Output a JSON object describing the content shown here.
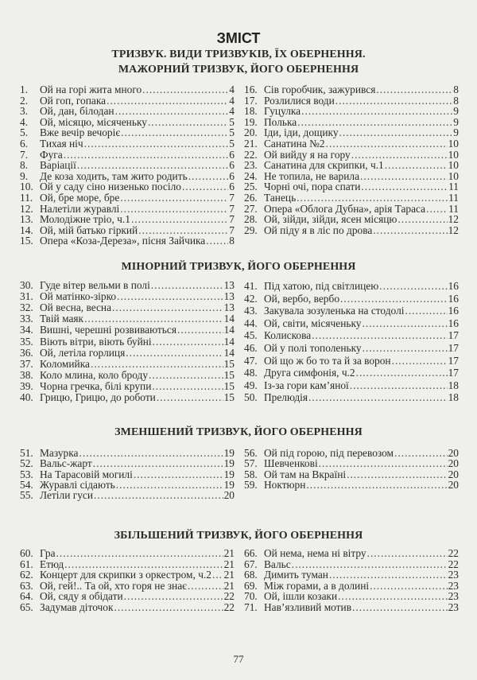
{
  "title": "ЗМІСТ",
  "subtitle_1": "ТРИЗВУК. ВИДИ ТРИЗВУКІВ, ЇХ ОБЕРНЕННЯ.",
  "sections": [
    {
      "heading": "МАЖОРНИЙ ТРИЗВУК, ЙОГО ОБЕРНЕННЯ",
      "left": [
        [
          "1.",
          "Ой на горі жита много",
          "4"
        ],
        [
          "2.",
          "Ой гоп, гопака",
          "4"
        ],
        [
          "3.",
          "Ой, дан, білодан",
          "4"
        ],
        [
          "4.",
          "Ой, місяцю, місяченьку",
          "5"
        ],
        [
          "5.",
          "Вже вечір вечоріє",
          "5"
        ],
        [
          "6.",
          "Тихая ніч",
          "5"
        ],
        [
          "7.",
          "Фуга",
          "6"
        ],
        [
          "8.",
          "Варіації",
          "6"
        ],
        [
          "9.",
          "Де коза ходить, там жито родить",
          "6"
        ],
        [
          "10.",
          "Ой у саду сіно низенько посіло",
          "6"
        ],
        [
          "11.",
          "Ой, бре море, бре",
          "7"
        ],
        [
          "12.",
          "Налетіли журавлі",
          "7"
        ],
        [
          "13.",
          "Молодіжне тріо, ч.1",
          "7"
        ],
        [
          "14.",
          "Ой, мій батько гіркий",
          "7"
        ],
        [
          "15.",
          "Опера «Коза-Дереза», пісня Зайчика",
          "8"
        ]
      ],
      "right": [
        [
          "16.",
          "Сів горобчик, зажурився",
          "8"
        ],
        [
          "17.",
          "Розлилися води",
          "8"
        ],
        [
          "18.",
          "Гуцулка",
          "9"
        ],
        [
          "19.",
          "Полька",
          "9"
        ],
        [
          "20.",
          "Іди, іди, дощику",
          "9"
        ],
        [
          "21.",
          "Санатина №2",
          "10"
        ],
        [
          "22.",
          "Ой вийду я на гору",
          "10"
        ],
        [
          "23.",
          "Санатина для скрипки, ч.1",
          "10"
        ],
        [
          "24.",
          "Не топила, не варила",
          "10"
        ],
        [
          "25.",
          "Чорні очі, пора спати",
          "11"
        ],
        [
          "26.",
          "Танець",
          "11"
        ],
        [
          "27.",
          "Опера «Облога Дубна», арія Тараса",
          "11"
        ],
        [
          "28.",
          "Ой, зійди, зійди, ясен місяцю",
          "12"
        ],
        [
          "29.",
          "Ой піду я в ліс по дрова",
          "12"
        ]
      ]
    },
    {
      "heading": "МІНОРНИЙ ТРИЗВУК, ЙОГО ОБЕРНЕННЯ",
      "left": [
        [
          "30.",
          "Гуде вітер вельми в полі",
          "13"
        ],
        [
          "31.",
          "Ой матінко-зірко",
          "13"
        ],
        [
          "32.",
          "Ой весна, весна",
          "13"
        ],
        [
          "33.",
          "Твій маяк",
          "14"
        ],
        [
          "34.",
          "Вишні, черешні розвиваються",
          "14"
        ],
        [
          "35.",
          "Віють вітри, віють буйні",
          "14"
        ],
        [
          "36.",
          "Ой, летіла горлиця",
          "14"
        ],
        [
          "37.",
          "Коломийка",
          "15"
        ],
        [
          "38.",
          "Коло млина, коло броду",
          "15"
        ],
        [
          "39.",
          "Чорна гречка, білі крупи",
          "15"
        ],
        [
          "40.",
          "Грицю, Грицю, до роботи",
          "15"
        ]
      ],
      "right": [
        [
          "41.",
          "Під хатою, під світлицею",
          "16"
        ],
        [
          "42.",
          "Ой, вербо, вербо",
          "16"
        ],
        [
          "43.",
          "Закувала зозуленька на стодолі",
          "16"
        ],
        [
          "44.",
          "Ой, світи, місяченьку",
          "16"
        ],
        [
          "45.",
          "Колискова",
          "17"
        ],
        [
          "46.",
          "Ой у полі тополеньку",
          "17"
        ],
        [
          "47.",
          "Ой що ж бо то  та й за ворон",
          "17"
        ],
        [
          "48.",
          "Друга симфонія, ч.2",
          "17"
        ],
        [
          "49.",
          "Із-за гори кам’яної",
          "18"
        ],
        [
          "50.",
          "Прелюдія",
          "18"
        ]
      ]
    },
    {
      "heading": "ЗМЕНШЕНИЙ ТРИЗВУК, ЙОГО ОБЕРНЕННЯ",
      "left": [
        [
          "51.",
          "Мазурка",
          "19"
        ],
        [
          "52.",
          "Вальс-жарт",
          "19"
        ],
        [
          "53.",
          "На Тарасовій могилі",
          "19"
        ],
        [
          "54.",
          "Журавлі сідають",
          "19"
        ],
        [
          "55.",
          "Летіли гуси",
          "20"
        ]
      ],
      "right": [
        [
          "56.",
          "Ой під горою, під перевозом",
          "20"
        ],
        [
          "57.",
          "Шевченкові",
          "20"
        ],
        [
          "58.",
          "Ой там на Вкраїні",
          "20"
        ],
        [
          "59.",
          "Ноктюрн",
          "20"
        ]
      ]
    },
    {
      "heading": "ЗБІЛЬШЕНИЙ ТРИЗВУК, ЙОГО ОБЕРНЕННЯ",
      "left": [
        [
          "60.",
          "Гра",
          "21"
        ],
        [
          "61.",
          "Етюд",
          "21"
        ],
        [
          "62.",
          "Концерт для скрипки з оркестром, ч.2",
          "21"
        ],
        [
          "63.",
          "Ой, гей!.. Та ой, хто горя не знає",
          "21"
        ],
        [
          "64.",
          "Ой, сяду я обідати",
          "22"
        ],
        [
          "65.",
          "Задумав діточок",
          "22"
        ]
      ],
      "right": [
        [
          "66.",
          "Ой нема, нема ні вітру",
          "22"
        ],
        [
          "67.",
          "Вальс",
          "22"
        ],
        [
          "68.",
          "Димить туман",
          "23"
        ],
        [
          "69.",
          "Між горами, а в долині",
          "23"
        ],
        [
          "70.",
          "Ой, ішли козаки",
          "23"
        ],
        [
          "71.",
          "Нав’язливий мотив",
          "23"
        ]
      ]
    }
  ],
  "page_number": "77"
}
